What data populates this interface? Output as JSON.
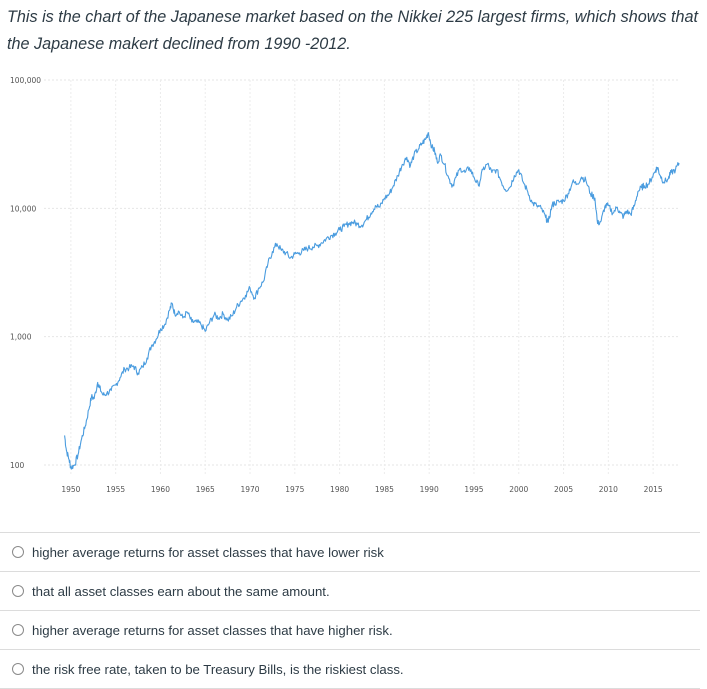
{
  "question": {
    "text": "This is the chart of the Japanese market based on the Nikkei 225 largest firms, which shows that the Japanese makert declined from 1990 -2012."
  },
  "chart_data": {
    "type": "line",
    "title": "",
    "xlabel": "",
    "ylabel": "",
    "yscale": "log",
    "xlim": [
      1947,
      2018
    ],
    "ylim": [
      85,
      100000
    ],
    "grid": true,
    "color": "#4a9cdf",
    "y_ticks": [
      {
        "value": 100,
        "label": "100"
      },
      {
        "value": 1000,
        "label": "1,000"
      },
      {
        "value": 10000,
        "label": "10,000"
      },
      {
        "value": 100000,
        "label": "100,000"
      }
    ],
    "x_ticks": [
      {
        "value": 1950,
        "label": "1950"
      },
      {
        "value": 1955,
        "label": "1955"
      },
      {
        "value": 1960,
        "label": "1960"
      },
      {
        "value": 1965,
        "label": "1965"
      },
      {
        "value": 1970,
        "label": "1970"
      },
      {
        "value": 1975,
        "label": "1975"
      },
      {
        "value": 1980,
        "label": "1980"
      },
      {
        "value": 1985,
        "label": "1985"
      },
      {
        "value": 1990,
        "label": "1990"
      },
      {
        "value": 1995,
        "label": "1995"
      },
      {
        "value": 2000,
        "label": "2000"
      },
      {
        "value": 2005,
        "label": "2005"
      },
      {
        "value": 2010,
        "label": "2010"
      },
      {
        "value": 2015,
        "label": "2015"
      }
    ],
    "points": [
      [
        1949.3,
        170
      ],
      [
        1949.5,
        130
      ],
      [
        1949.8,
        110
      ],
      [
        1950.0,
        95
      ],
      [
        1950.4,
        100
      ],
      [
        1950.8,
        120
      ],
      [
        1951.2,
        160
      ],
      [
        1951.6,
        200
      ],
      [
        1952.0,
        270
      ],
      [
        1952.3,
        340
      ],
      [
        1952.6,
        330
      ],
      [
        1953.0,
        440
      ],
      [
        1953.2,
        400
      ],
      [
        1953.6,
        350
      ],
      [
        1954.0,
        360
      ],
      [
        1954.5,
        380
      ],
      [
        1955.0,
        420
      ],
      [
        1955.5,
        480
      ],
      [
        1956.0,
        560
      ],
      [
        1956.5,
        570
      ],
      [
        1957.0,
        590
      ],
      [
        1957.5,
        520
      ],
      [
        1958.0,
        580
      ],
      [
        1958.5,
        680
      ],
      [
        1959.0,
        850
      ],
      [
        1959.5,
        950
      ],
      [
        1960.0,
        1150
      ],
      [
        1960.5,
        1250
      ],
      [
        1961.0,
        1600
      ],
      [
        1961.3,
        1820
      ],
      [
        1961.6,
        1500
      ],
      [
        1962.0,
        1580
      ],
      [
        1962.5,
        1400
      ],
      [
        1963.0,
        1550
      ],
      [
        1963.5,
        1300
      ],
      [
        1964.0,
        1300
      ],
      [
        1964.5,
        1250
      ],
      [
        1965.0,
        1100
      ],
      [
        1965.5,
        1300
      ],
      [
        1966.0,
        1480
      ],
      [
        1966.5,
        1400
      ],
      [
        1967.0,
        1500
      ],
      [
        1967.5,
        1350
      ],
      [
        1968.0,
        1450
      ],
      [
        1968.5,
        1700
      ],
      [
        1969.0,
        1900
      ],
      [
        1969.5,
        2100
      ],
      [
        1970.0,
        2400
      ],
      [
        1970.5,
        2000
      ],
      [
        1971.0,
        2400
      ],
      [
        1971.5,
        2700
      ],
      [
        1972.0,
        3700
      ],
      [
        1972.5,
        4600
      ],
      [
        1973.0,
        5300
      ],
      [
        1973.5,
        4700
      ],
      [
        1974.0,
        4500
      ],
      [
        1974.5,
        4100
      ],
      [
        1975.0,
        4400
      ],
      [
        1975.5,
        4500
      ],
      [
        1976.0,
        4700
      ],
      [
        1976.5,
        4900
      ],
      [
        1977.0,
        5000
      ],
      [
        1977.5,
        5100
      ],
      [
        1978.0,
        5400
      ],
      [
        1978.5,
        5800
      ],
      [
        1979.0,
        6100
      ],
      [
        1979.5,
        6400
      ],
      [
        1980.0,
        6800
      ],
      [
        1980.5,
        7200
      ],
      [
        1981.0,
        7600
      ],
      [
        1981.5,
        7800
      ],
      [
        1982.0,
        7500
      ],
      [
        1982.5,
        7400
      ],
      [
        1983.0,
        8200
      ],
      [
        1983.5,
        9200
      ],
      [
        1984.0,
        10500
      ],
      [
        1984.5,
        10200
      ],
      [
        1985.0,
        12000
      ],
      [
        1985.5,
        12800
      ],
      [
        1986.0,
        15000
      ],
      [
        1986.5,
        18000
      ],
      [
        1987.0,
        22000
      ],
      [
        1987.5,
        25000
      ],
      [
        1987.9,
        21500
      ],
      [
        1988.3,
        26000
      ],
      [
        1988.8,
        29000
      ],
      [
        1989.2,
        32000
      ],
      [
        1989.6,
        34500
      ],
      [
        1989.9,
        38900
      ],
      [
        1990.3,
        30000
      ],
      [
        1990.6,
        28000
      ],
      [
        1990.9,
        23000
      ],
      [
        1991.3,
        26000
      ],
      [
        1991.7,
        22000
      ],
      [
        1992.2,
        17000
      ],
      [
        1992.6,
        15000
      ],
      [
        1993.0,
        17500
      ],
      [
        1993.5,
        20500
      ],
      [
        1994.0,
        19000
      ],
      [
        1994.5,
        20700
      ],
      [
        1995.0,
        17500
      ],
      [
        1995.5,
        15000
      ],
      [
        1996.0,
        20000
      ],
      [
        1996.5,
        22200
      ],
      [
        1997.0,
        19000
      ],
      [
        1997.5,
        20000
      ],
      [
        1998.0,
        16500
      ],
      [
        1998.5,
        14000
      ],
      [
        1999.0,
        14500
      ],
      [
        1999.5,
        18000
      ],
      [
        2000.0,
        20000
      ],
      [
        2000.5,
        16000
      ],
      [
        2001.0,
        13500
      ],
      [
        2001.5,
        11000
      ],
      [
        2002.0,
        10500
      ],
      [
        2002.5,
        10000
      ],
      [
        2003.0,
        8500
      ],
      [
        2003.3,
        7800
      ],
      [
        2003.7,
        10500
      ],
      [
        2004.0,
        11000
      ],
      [
        2004.5,
        11200
      ],
      [
        2005.0,
        11500
      ],
      [
        2005.5,
        13000
      ],
      [
        2006.0,
        16000
      ],
      [
        2006.5,
        15500
      ],
      [
        2007.0,
        17500
      ],
      [
        2007.5,
        16500
      ],
      [
        2008.0,
        13000
      ],
      [
        2008.5,
        12000
      ],
      [
        2008.8,
        7600
      ],
      [
        2009.2,
        8000
      ],
      [
        2009.6,
        10300
      ],
      [
        2010.0,
        10500
      ],
      [
        2010.5,
        9200
      ],
      [
        2011.0,
        10200
      ],
      [
        2011.3,
        9200
      ],
      [
        2011.7,
        8600
      ],
      [
        2012.0,
        9500
      ],
      [
        2012.5,
        9000
      ],
      [
        2012.9,
        10400
      ],
      [
        2013.3,
        13500
      ],
      [
        2013.7,
        14500
      ],
      [
        2014.0,
        15000
      ],
      [
        2014.5,
        15500
      ],
      [
        2014.9,
        17500
      ],
      [
        2015.3,
        20000
      ],
      [
        2015.5,
        20800
      ],
      [
        2015.8,
        18000
      ],
      [
        2016.2,
        16000
      ],
      [
        2016.7,
        17000
      ],
      [
        2017.0,
        19000
      ],
      [
        2017.5,
        20000
      ],
      [
        2017.9,
        22500
      ]
    ]
  },
  "options": [
    {
      "text": "higher average returns for asset classes that have lower risk"
    },
    {
      "text": "that all asset classes earn about the same amount."
    },
    {
      "text": "higher average returns for asset classes that have higher risk."
    },
    {
      "text": "the risk free rate, taken to be Treasury Bills, is the riskiest class."
    }
  ]
}
